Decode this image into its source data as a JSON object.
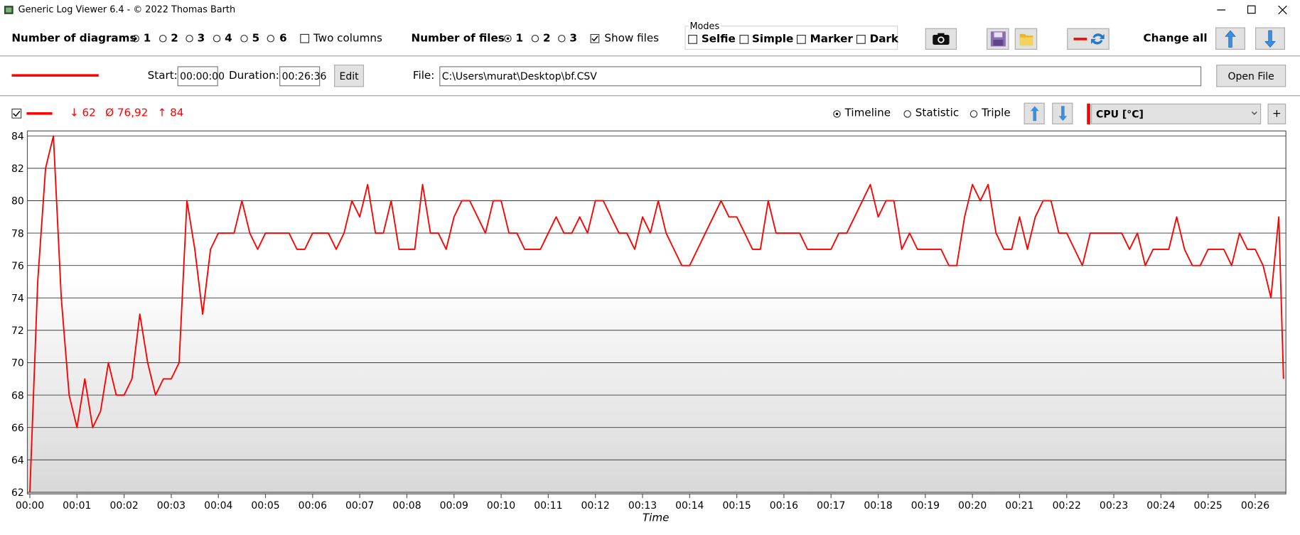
{
  "window": {
    "title": "Generic Log Viewer 6.4 - © 2022 Thomas Barth"
  },
  "toolbar": {
    "diagrams_label": "Number of diagrams",
    "diagram_options": [
      "1",
      "2",
      "3",
      "4",
      "5",
      "6"
    ],
    "two_columns": "Two columns",
    "files_label": "Number of files",
    "file_options": [
      "1",
      "2",
      "3"
    ],
    "show_files": "Show files",
    "modes_title": "Modes",
    "modes": [
      "Selfie",
      "Simple",
      "Marker",
      "Dark"
    ],
    "change_all": "Change all"
  },
  "file_bar": {
    "start_label": "Start:",
    "start": "00:00:00",
    "duration_label": "Duration:",
    "duration": "00:26:36",
    "edit": "Edit",
    "file_label": "File:",
    "file": "C:\\Users\\murat\\Desktop\\bf.CSV",
    "open_file": "Open File"
  },
  "diagram_bar": {
    "min": "↓ 62",
    "avg": "Ø 76,92",
    "max": "↑ 84",
    "views": [
      "Timeline",
      "Statistic",
      "Triple"
    ],
    "add": "+"
  },
  "chart_data": {
    "type": "line",
    "xlabel": "Time",
    "grid": true,
    "x": [
      0,
      10,
      20,
      30,
      40,
      50,
      60,
      70,
      80,
      90,
      100,
      110,
      120,
      130,
      140,
      150,
      160,
      170,
      180,
      190,
      200,
      210,
      220,
      230,
      240,
      250,
      260,
      270,
      280,
      290,
      300,
      310,
      320,
      330,
      340,
      350,
      360,
      370,
      380,
      390,
      400,
      410,
      420,
      430,
      440,
      450,
      460,
      470,
      480,
      490,
      500,
      510,
      520,
      530,
      540,
      550,
      560,
      570,
      580,
      590,
      600,
      610,
      620,
      630,
      640,
      650,
      660,
      670,
      680,
      690,
      700,
      710,
      720,
      730,
      740,
      750,
      760,
      770,
      780,
      790,
      800,
      810,
      820,
      830,
      840,
      850,
      860,
      870,
      880,
      890,
      900,
      910,
      920,
      930,
      940,
      950,
      960,
      970,
      980,
      990,
      1000,
      1010,
      1020,
      1030,
      1040,
      1050,
      1060,
      1070,
      1080,
      1090,
      1100,
      1110,
      1120,
      1130,
      1140,
      1150,
      1160,
      1170,
      1180,
      1190,
      1200,
      1210,
      1220,
      1230,
      1240,
      1250,
      1260,
      1270,
      1280,
      1290,
      1300,
      1310,
      1320,
      1330,
      1340,
      1350,
      1360,
      1370,
      1380,
      1390,
      1400,
      1410,
      1420,
      1430,
      1440,
      1450,
      1460,
      1470,
      1480,
      1490,
      1500,
      1510,
      1520,
      1530,
      1540,
      1550,
      1560,
      1570,
      1580,
      1590,
      1596
    ],
    "series": [
      {
        "name": "CPU [°C]",
        "color": "#ff0000",
        "values": [
          62,
          75,
          82,
          84,
          74,
          68,
          66,
          69,
          66,
          67,
          70,
          68,
          68,
          69,
          73,
          70,
          68,
          69,
          69,
          70,
          80,
          77,
          73,
          77,
          78,
          78,
          78,
          80,
          78,
          77,
          78,
          78,
          78,
          78,
          77,
          77,
          78,
          78,
          78,
          77,
          78,
          80,
          79,
          81,
          78,
          78,
          80,
          77,
          77,
          77,
          81,
          78,
          78,
          77,
          79,
          80,
          80,
          79,
          78,
          80,
          80,
          78,
          78,
          77,
          77,
          77,
          78,
          79,
          78,
          78,
          79,
          78,
          80,
          80,
          79,
          78,
          78,
          77,
          79,
          78,
          80,
          78,
          77,
          76,
          76,
          77,
          78,
          79,
          80,
          79,
          79,
          78,
          77,
          77,
          80,
          78,
          78,
          78,
          78,
          77,
          77,
          77,
          77,
          78,
          78,
          79,
          80,
          81,
          79,
          80,
          80,
          77,
          78,
          77,
          77,
          77,
          77,
          76,
          76,
          79,
          81,
          80,
          81,
          78,
          77,
          77,
          79,
          77,
          79,
          80,
          80,
          78,
          78,
          77,
          76,
          78,
          78,
          78,
          78,
          78,
          77,
          78,
          76,
          77,
          77,
          77,
          79,
          77,
          76,
          76,
          77,
          77,
          77,
          76,
          78,
          77,
          77,
          76,
          74,
          79,
          69
        ]
      }
    ],
    "xlim": [
      0,
      1596
    ],
    "ylim": [
      62,
      84
    ],
    "yticks": [
      62,
      64,
      66,
      68,
      70,
      72,
      74,
      76,
      78,
      80,
      82,
      84
    ],
    "xticks": [
      {
        "value": 0,
        "label": "00:00"
      },
      {
        "value": 60,
        "label": "00:01"
      },
      {
        "value": 120,
        "label": "00:02"
      },
      {
        "value": 180,
        "label": "00:03"
      },
      {
        "value": 240,
        "label": "00:04"
      },
      {
        "value": 300,
        "label": "00:05"
      },
      {
        "value": 360,
        "label": "00:06"
      },
      {
        "value": 420,
        "label": "00:07"
      },
      {
        "value": 480,
        "label": "00:08"
      },
      {
        "value": 540,
        "label": "00:09"
      },
      {
        "value": 600,
        "label": "00:10"
      },
      {
        "value": 660,
        "label": "00:11"
      },
      {
        "value": 720,
        "label": "00:12"
      },
      {
        "value": 780,
        "label": "00:13"
      },
      {
        "value": 840,
        "label": "00:14"
      },
      {
        "value": 900,
        "label": "00:15"
      },
      {
        "value": 960,
        "label": "00:16"
      },
      {
        "value": 1020,
        "label": "00:17"
      },
      {
        "value": 1080,
        "label": "00:18"
      },
      {
        "value": 1140,
        "label": "00:19"
      },
      {
        "value": 1200,
        "label": "00:20"
      },
      {
        "value": 1260,
        "label": "00:21"
      },
      {
        "value": 1320,
        "label": "00:22"
      },
      {
        "value": 1380,
        "label": "00:23"
      },
      {
        "value": 1440,
        "label": "00:24"
      },
      {
        "value": 1500,
        "label": "00:25"
      },
      {
        "value": 1560,
        "label": "00:26"
      }
    ]
  }
}
